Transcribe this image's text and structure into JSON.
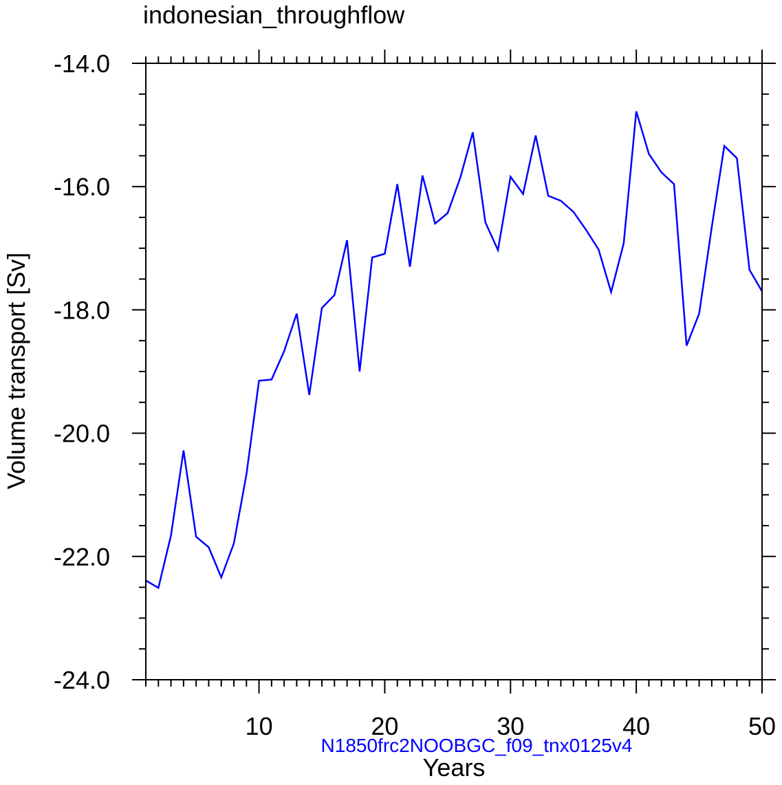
{
  "chart_data": {
    "type": "line",
    "title": "indonesian_throughflow",
    "xlabel": "Years",
    "ylabel": "Volume transport [Sv]",
    "xlim": [
      1,
      50
    ],
    "ylim": [
      -24.0,
      -14.0
    ],
    "x_ticks": [
      10,
      20,
      30,
      40,
      50
    ],
    "x_tick_labels": [
      "10",
      "20",
      "30",
      "40",
      "50"
    ],
    "y_ticks": [
      -24.0,
      -22.0,
      -20.0,
      -18.0,
      -16.0,
      -14.0
    ],
    "y_tick_labels": [
      "-24.0",
      "-22.0",
      "-20.0",
      "-18.0",
      "-16.0",
      "-14.0"
    ],
    "grid": false,
    "line_color": "#0000ff",
    "annotation": {
      "text": "N1850frc2NOOBGC_f09_tnx0125v4",
      "color": "#0000ff",
      "placement": "bottom-center"
    },
    "series": [
      {
        "x": [
          1,
          2,
          3,
          4,
          5,
          6,
          7,
          8,
          9,
          10,
          11,
          12,
          13,
          14,
          15,
          16,
          17,
          18,
          19,
          20,
          21,
          22,
          23,
          24,
          25,
          26,
          27,
          28,
          29,
          30,
          31,
          32,
          33,
          34,
          35,
          36,
          37,
          38,
          39,
          40,
          41,
          42,
          43,
          44,
          45,
          46,
          47,
          48,
          49,
          50
        ],
        "values": [
          -22.39,
          -22.51,
          -21.66,
          -20.28,
          -21.68,
          -21.85,
          -22.34,
          -21.79,
          -20.67,
          -19.15,
          -19.13,
          -18.67,
          -18.06,
          -19.38,
          -17.97,
          -17.76,
          -16.87,
          -19.0,
          -17.15,
          -17.09,
          -15.96,
          -17.3,
          -15.82,
          -16.6,
          -16.43,
          -15.86,
          -15.12,
          -16.58,
          -17.03,
          -15.84,
          -16.12,
          -15.17,
          -16.15,
          -16.23,
          -16.41,
          -16.7,
          -17.02,
          -17.71,
          -16.92,
          -14.78,
          -15.47,
          -15.77,
          -15.96,
          -18.58,
          -18.06,
          -16.66,
          -15.34,
          -15.54,
          -17.35,
          -17.7
        ]
      }
    ]
  }
}
